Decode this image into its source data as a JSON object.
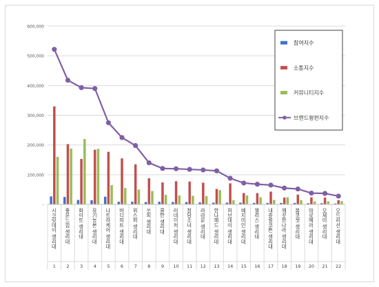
{
  "chart_data": {
    "type": "bar",
    "categories": [
      "시크릿데이 생리대",
      "좋은느낌 생리대",
      "화이트 생리대",
      "유기농본 생리대",
      "나트라케어 생리대",
      "바디피트 생리대",
      "위스퍼 생리대",
      "쏘피 생리대",
      "콜만 생리대",
      "러네이처 생리대",
      "청담소녀 생리대",
      "라라문 생리대",
      "한나패드 생리대",
      "허브데이 생리대",
      "예지미인 생리대",
      "엘리스 생리대",
      "내츄럴코튼 생리대",
      "깨끗한나라 생리대",
      "봄코셋 생리대",
      "마로메라 생리대",
      "오제미 생리대",
      "오드리선 생리대"
    ],
    "x_index_labels": [
      "1",
      "2",
      "3",
      "4",
      "5",
      "6",
      "7",
      "8",
      "9",
      "10",
      "11",
      "12",
      "13",
      "14",
      "15",
      "16",
      "17",
      "18",
      "19",
      "20",
      "21",
      "22"
    ],
    "series": [
      {
        "name": "참여지수",
        "color": "#4472c4",
        "values": [
          27000,
          25000,
          15000,
          14000,
          26000,
          9000,
          9000,
          8000,
          9000,
          8000,
          8000,
          7000,
          6000,
          6000,
          6000,
          5000,
          5000,
          5000,
          5000,
          4000,
          4000,
          3000
        ]
      },
      {
        "name": "소통지수",
        "color": "#c0504d",
        "values": [
          330000,
          203000,
          153000,
          184000,
          177000,
          155000,
          135000,
          88000,
          74000,
          78000,
          77000,
          73000,
          52000,
          71000,
          38000,
          38000,
          43000,
          23000,
          33000,
          24000,
          23000,
          14000
        ]
      },
      {
        "name": "커뮤니티지수",
        "color": "#9bbb59",
        "values": [
          160000,
          188000,
          220000,
          187000,
          65000,
          55000,
          50000,
          45000,
          32000,
          30000,
          29000,
          28000,
          48000,
          14000,
          30000,
          24000,
          15000,
          24000,
          14000,
          10000,
          10000,
          11000
        ]
      }
    ],
    "line_series": {
      "name": "브랜드평판지수",
      "color": "#7f5fa6",
      "values": [
        522000,
        418000,
        393000,
        390000,
        275000,
        225000,
        198000,
        140000,
        121000,
        120000,
        118000,
        116000,
        113000,
        88000,
        72000,
        68000,
        65000,
        55000,
        52000,
        38000,
        37000,
        28000
      ]
    },
    "yticks": [
      "600,000",
      "500,000",
      "400,000",
      "300,000",
      "200,000",
      "100,000",
      "-"
    ],
    "ylim": [
      0,
      600000
    ],
    "grid": true,
    "legend_position": "right"
  }
}
